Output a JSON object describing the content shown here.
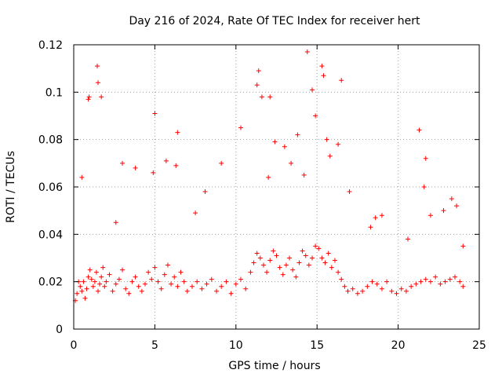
{
  "chart_data": {
    "type": "scatter",
    "title": "Day 216 of 2024, Rate Of TEC Index for receiver hert",
    "xlabel": "GPS time / hours",
    "ylabel": "ROTI / TECUs",
    "xlim": [
      0,
      25
    ],
    "ylim": [
      0,
      0.12
    ],
    "xticks": [
      0,
      5,
      10,
      15,
      20,
      25
    ],
    "yticks": [
      0,
      0.02,
      0.04,
      0.06,
      0.08,
      0.1,
      0.12
    ],
    "xtick_labels": [
      "0",
      "5",
      "10",
      "15",
      "20",
      "25"
    ],
    "ytick_labels": [
      "0",
      "0.02",
      "0.04",
      "0.06",
      "0.08",
      "0.1",
      "0.12"
    ],
    "grid": true,
    "marker": "plus",
    "color": "#ff0000",
    "series": [
      {
        "x": [
          0.1,
          0.2,
          0.3,
          0.4,
          0.5,
          0.6,
          0.7,
          0.8,
          0.9,
          1.0,
          1.1,
          1.2,
          1.3,
          1.4,
          1.5,
          1.6,
          1.7,
          1.8,
          1.9,
          2.0,
          2.2,
          2.4,
          2.6,
          2.8,
          3.0,
          3.2,
          3.4,
          3.6,
          3.8,
          4.0,
          4.2,
          4.4,
          4.6,
          4.8,
          5.0,
          5.2,
          5.4,
          5.6,
          5.8,
          6.0,
          6.2,
          6.4,
          6.6,
          6.8,
          7.0,
          7.3,
          7.6,
          7.9,
          8.2,
          8.5,
          8.8,
          9.1,
          9.4,
          9.7,
          10.0,
          10.3,
          10.6,
          10.9,
          11.1,
          11.3,
          11.5,
          11.7,
          11.9,
          12.1,
          12.3,
          12.5,
          12.7,
          12.9,
          13.1,
          13.3,
          13.5,
          13.7,
          13.9,
          14.1,
          14.3,
          14.5,
          14.7,
          14.9,
          15.1,
          15.3,
          15.5,
          15.7,
          15.9,
          16.1,
          16.3,
          16.5,
          16.7,
          16.9,
          17.2,
          17.5,
          17.8,
          18.1,
          18.4,
          18.7,
          19.0,
          19.3,
          19.6,
          19.9,
          20.2,
          20.5,
          20.8,
          21.1,
          21.4,
          21.7,
          22.0,
          22.3,
          22.6,
          22.9,
          23.2,
          23.5,
          23.8,
          24.0,
          0.9,
          0.95,
          1.45,
          1.5,
          1.7,
          5.0,
          6.4,
          11.4,
          11.6,
          12.1,
          14.4,
          14.7,
          15.3,
          15.4,
          16.5,
          21.3,
          21.7,
          23.3,
          23.6,
          3.0,
          3.8,
          5.7,
          8.1,
          9.1,
          10.3,
          11.3,
          12.4,
          13.4,
          13.8,
          14.9,
          15.6,
          16.3,
          18.6,
          19.0,
          20.6,
          21.6,
          22.8,
          0.5,
          2.6,
          4.9,
          6.3,
          7.5,
          12.0,
          13.0,
          14.2,
          15.8,
          17.0,
          18.3,
          22.0,
          24.0
        ],
        "y": [
          0.012,
          0.015,
          0.02,
          0.018,
          0.016,
          0.02,
          0.013,
          0.017,
          0.022,
          0.025,
          0.021,
          0.018,
          0.02,
          0.024,
          0.016,
          0.019,
          0.022,
          0.026,
          0.018,
          0.02,
          0.023,
          0.016,
          0.019,
          0.021,
          0.025,
          0.017,
          0.015,
          0.02,
          0.022,
          0.018,
          0.016,
          0.019,
          0.024,
          0.021,
          0.026,
          0.02,
          0.017,
          0.023,
          0.027,
          0.019,
          0.022,
          0.018,
          0.024,
          0.02,
          0.016,
          0.018,
          0.02,
          0.017,
          0.019,
          0.021,
          0.016,
          0.018,
          0.02,
          0.015,
          0.019,
          0.021,
          0.017,
          0.024,
          0.028,
          0.032,
          0.03,
          0.027,
          0.024,
          0.029,
          0.033,
          0.031,
          0.026,
          0.023,
          0.027,
          0.03,
          0.025,
          0.022,
          0.028,
          0.033,
          0.031,
          0.027,
          0.03,
          0.035,
          0.034,
          0.03,
          0.028,
          0.032,
          0.026,
          0.029,
          0.024,
          0.021,
          0.018,
          0.016,
          0.017,
          0.015,
          0.016,
          0.018,
          0.02,
          0.019,
          0.017,
          0.02,
          0.016,
          0.015,
          0.017,
          0.016,
          0.018,
          0.019,
          0.02,
          0.021,
          0.02,
          0.022,
          0.019,
          0.02,
          0.021,
          0.022,
          0.02,
          0.018,
          0.097,
          0.098,
          0.111,
          0.104,
          0.098,
          0.091,
          0.083,
          0.109,
          0.098,
          0.098,
          0.117,
          0.101,
          0.111,
          0.107,
          0.105,
          0.084,
          0.072,
          0.055,
          0.052,
          0.07,
          0.068,
          0.071,
          0.058,
          0.07,
          0.085,
          0.103,
          0.079,
          0.07,
          0.082,
          0.09,
          0.08,
          0.078,
          0.047,
          0.048,
          0.038,
          0.06,
          0.05,
          0.064,
          0.045,
          0.066,
          0.069,
          0.049,
          0.064,
          0.077,
          0.065,
          0.073,
          0.058,
          0.043,
          0.048,
          0.035
        ]
      }
    ]
  }
}
